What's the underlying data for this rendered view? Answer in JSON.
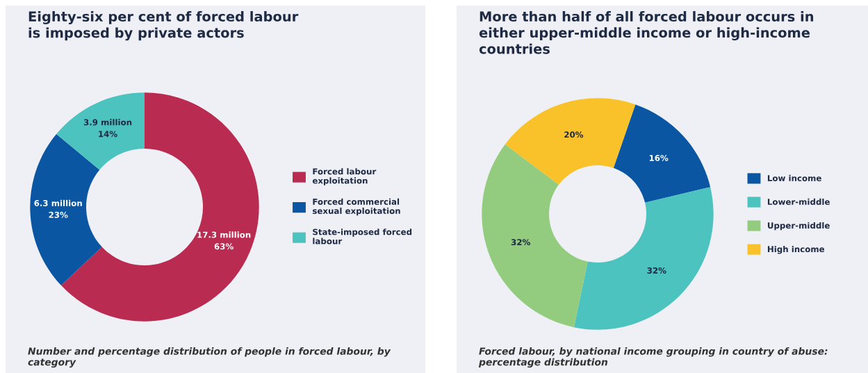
{
  "chart_data": [
    {
      "type": "donut",
      "title": "Eighty-six per cent of forced labour is imposed by private actors",
      "categories": [
        "Forced labour exploitation",
        "Forced commercial sexual exploitation",
        "State-imposed forced labour"
      ],
      "values": [
        63,
        23,
        14
      ],
      "value_labels": [
        "17.3 million\n63%",
        "6.3 million\n23%",
        "3.9 million\n14%"
      ],
      "colors": [
        "#b92b50",
        "#0a56a3",
        "#4dc3bf"
      ],
      "legend": "right",
      "annotations": [
        "Number and percentage distribution of people in forced labour, by category"
      ]
    },
    {
      "type": "donut",
      "title": "More than half of all forced labour occurs in either upper-middle income or high-income countries",
      "categories": [
        "Low income",
        "Lower-middle",
        "Upper-middle",
        "High income"
      ],
      "values": [
        16,
        32,
        32,
        20
      ],
      "value_labels": [
        "16%",
        "32%",
        "32%",
        "20%"
      ],
      "colors": [
        "#0a56a3",
        "#4dc3bf",
        "#93cc7e",
        "#f9c22a"
      ],
      "legend": "right",
      "annotations": [
        "Forced labour, by national income grouping in country of abuse: percentage distribution"
      ]
    }
  ]
}
